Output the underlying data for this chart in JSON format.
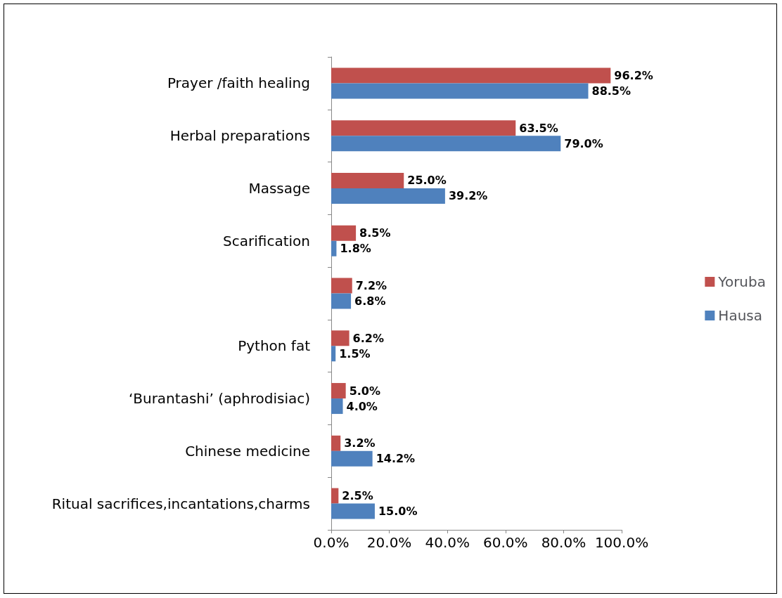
{
  "chart_data": {
    "type": "bar",
    "orientation": "horizontal",
    "categories": [
      "Prayer /faith healing",
      "Herbal preparations",
      "Massage",
      "Scarification",
      null,
      "Python fat",
      "‘Burantashi’ (aphrodisiac)",
      "Chinese medicine",
      "Ritual sacrifices,incantations,charms"
    ],
    "series": [
      {
        "name": "Yoruba",
        "color": "#c0504d",
        "values": [
          96.2,
          63.5,
          25.0,
          8.5,
          7.2,
          6.2,
          5.0,
          3.2,
          2.5
        ],
        "value_labels": [
          "96.2%",
          "63.5%",
          "25.0%",
          "8.5%",
          "7.2%",
          "6.2%",
          "5.0%",
          "3.2%",
          "2.5%"
        ]
      },
      {
        "name": "Hausa",
        "color": "#4f81bd",
        "values": [
          88.5,
          79.0,
          39.2,
          1.8,
          6.8,
          1.5,
          4.0,
          14.2,
          15.0
        ],
        "value_labels": [
          "88.5%",
          "79.0%",
          "39.2%",
          "1.8%",
          "6.8%",
          "1.5%",
          "4.0%",
          "14.2%",
          "15.0%"
        ]
      }
    ],
    "xlim": [
      0,
      100
    ],
    "xticks": [
      {
        "value": 0,
        "label": "0.0%"
      },
      {
        "value": 20,
        "label": "20.0%"
      },
      {
        "value": 40,
        "label": "40.0%"
      },
      {
        "value": 60,
        "label": "60.0%"
      },
      {
        "value": 80,
        "label": "80.0%"
      },
      {
        "value": 100,
        "label": "100.0%"
      }
    ],
    "grid": false,
    "legend": "right"
  }
}
